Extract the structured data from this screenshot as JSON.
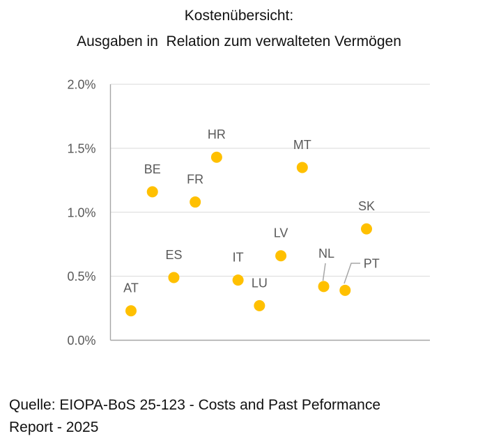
{
  "chart_data": {
    "type": "scatter",
    "title": "Kostenübersicht:",
    "subtitle": "Ausgaben in  Relation zum verwalteten Vermögen",
    "xlabel": "",
    "ylabel": "",
    "unit": "percent of assets under management",
    "ylim": [
      0.0,
      2.0
    ],
    "yticks": [
      0.0,
      0.5,
      1.0,
      1.5,
      2.0
    ],
    "ytick_labels": [
      "0.0%",
      "0.5%",
      "1.0%",
      "1.5%",
      "2.0%"
    ],
    "grid": true,
    "legend": "none",
    "marker_color": "#FFC000",
    "gridline_color": "#D9D9D9",
    "axis_color": "#A6A6A6",
    "tick_label_color": "#595959",
    "point_label_color": "#595959",
    "leader_line_color": "#A6A6A6",
    "points": [
      {
        "label": "AT",
        "value": 0.23
      },
      {
        "label": "BE",
        "value": 1.16
      },
      {
        "label": "ES",
        "value": 0.49
      },
      {
        "label": "FR",
        "value": 1.08
      },
      {
        "label": "HR",
        "value": 1.43
      },
      {
        "label": "IT",
        "value": 0.47
      },
      {
        "label": "LU",
        "value": 0.27
      },
      {
        "label": "LV",
        "value": 0.66
      },
      {
        "label": "MT",
        "value": 1.35
      },
      {
        "label": "NL",
        "value": 0.42,
        "label_offset": [
          4,
          -48
        ],
        "leader": [
          [
            467,
            378
          ],
          [
            463.5,
            403
          ]
        ]
      },
      {
        "label": "PT",
        "value": 0.39,
        "label_offset": [
          38,
          -39
        ],
        "leader": [
          [
            517,
            378
          ],
          [
            504,
            378
          ],
          [
            494,
            407
          ]
        ]
      },
      {
        "label": "SK",
        "value": 0.87
      }
    ]
  },
  "footer": {
    "source": "Quelle: EIOPA-BoS 25-123 - Costs and Past Peformance\nReport - 2025"
  }
}
